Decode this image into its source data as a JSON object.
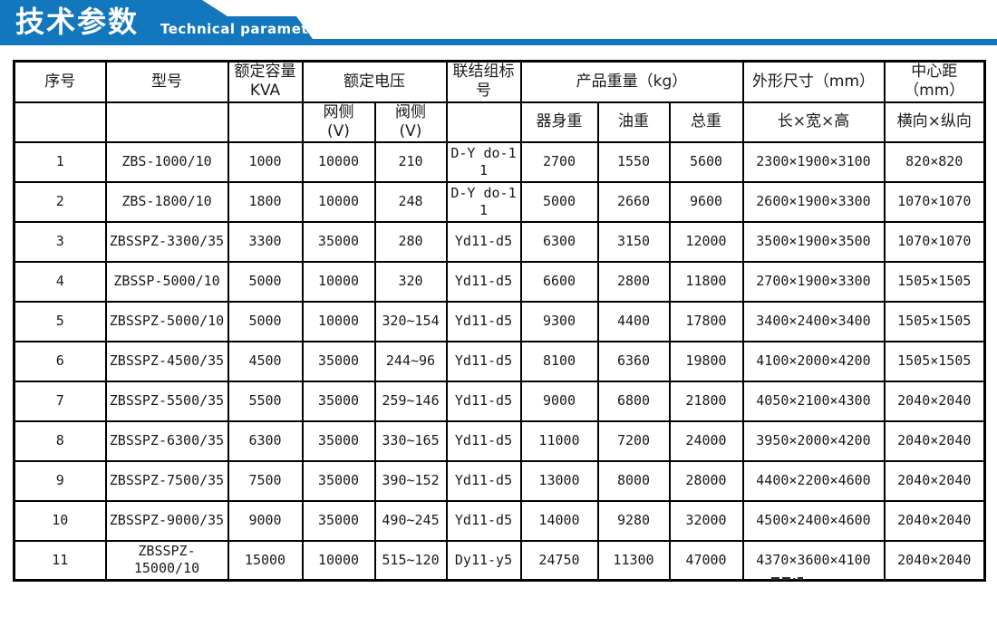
{
  "banner": {
    "title_zh": "技术参数",
    "title_en": "Technical parameter",
    "accent_color": "#1277bd"
  },
  "table": {
    "header": {
      "serial": "序号",
      "model": "型号",
      "capacity": "额定容量\nKVA",
      "voltage": "额定电压",
      "grid_side": "网侧\n(V)",
      "valve_side": "阀侧\n(V)",
      "vector_group": "联结组标号",
      "weight": "产品重量（kg）",
      "body_weight": "器身重",
      "oil_weight": "油重",
      "total_weight": "总重",
      "dimensions": "外形尺寸（mm）",
      "dimensions_sub": "长×宽×高",
      "center_distance": "中心距（mm）",
      "center_distance_sub": "横向×纵向"
    },
    "rows": [
      {
        "no": "1",
        "model": "ZBS-1000/10",
        "capacity": "1000",
        "grid_v": "10000",
        "valve_v": "210",
        "vector": "D-Y do-11",
        "body_w": "2700",
        "oil_w": "1550",
        "total_w": "5600",
        "dims": "2300×1900×3100",
        "center": "820×820"
      },
      {
        "no": "2",
        "model": "ZBS-1800/10",
        "capacity": "1800",
        "grid_v": "10000",
        "valve_v": "248",
        "vector": "D-Y do-11",
        "body_w": "5000",
        "oil_w": "2660",
        "total_w": "9600",
        "dims": "2600×1900×3300",
        "center": "1070×1070"
      },
      {
        "no": "3",
        "model": "ZBSSPZ-3300/35",
        "capacity": "3300",
        "grid_v": "35000",
        "valve_v": "280",
        "vector": "Yd11-d5",
        "body_w": "6300",
        "oil_w": "3150",
        "total_w": "12000",
        "dims": "3500×1900×3500",
        "center": "1070×1070"
      },
      {
        "no": "4",
        "model": "ZBSSP-5000/10",
        "capacity": "5000",
        "grid_v": "10000",
        "valve_v": "320",
        "vector": "Yd11-d5",
        "body_w": "6600",
        "oil_w": "2800",
        "total_w": "11800",
        "dims": "2700×1900×3300",
        "center": "1505×1505"
      },
      {
        "no": "5",
        "model": "ZBSSPZ-5000/10",
        "capacity": "5000",
        "grid_v": "10000",
        "valve_v": "320~154",
        "vector": "Yd11-d5",
        "body_w": "9300",
        "oil_w": "4400",
        "total_w": "17800",
        "dims": "3400×2400×3400",
        "center": "1505×1505"
      },
      {
        "no": "6",
        "model": "ZBSSPZ-4500/35",
        "capacity": "4500",
        "grid_v": "35000",
        "valve_v": "244~96",
        "vector": "Yd11-d5",
        "body_w": "8100",
        "oil_w": "6360",
        "total_w": "19800",
        "dims": "4100×2000×4200",
        "center": "1505×1505"
      },
      {
        "no": "7",
        "model": "ZBSSPZ-5500/35",
        "capacity": "5500",
        "grid_v": "35000",
        "valve_v": "259~146",
        "vector": "Yd11-d5",
        "body_w": "9000",
        "oil_w": "6800",
        "total_w": "21800",
        "dims": "4050×2100×4300",
        "center": "2040×2040"
      },
      {
        "no": "8",
        "model": "ZBSSPZ-6300/35",
        "capacity": "6300",
        "grid_v": "35000",
        "valve_v": "330~165",
        "vector": "Yd11-d5",
        "body_w": "11000",
        "oil_w": "7200",
        "total_w": "24000",
        "dims": "3950×2000×4200",
        "center": "2040×2040"
      },
      {
        "no": "9",
        "model": "ZBSSPZ-7500/35",
        "capacity": "7500",
        "grid_v": "35000",
        "valve_v": "390~152",
        "vector": "Yd11-d5",
        "body_w": "13000",
        "oil_w": "8000",
        "total_w": "28000",
        "dims": "4400×2200×4600",
        "center": "2040×2040"
      },
      {
        "no": "10",
        "model": "ZBSSPZ-9000/35",
        "capacity": "9000",
        "grid_v": "35000",
        "valve_v": "490~245",
        "vector": "Yd11-d5",
        "body_w": "14000",
        "oil_w": "9280",
        "total_w": "32000",
        "dims": "4500×2400×4600",
        "center": "2040×2040"
      },
      {
        "no": "11",
        "model": "ZBSSPZ-15000/10",
        "capacity": "15000",
        "grid_v": "10000",
        "valve_v": "515~120",
        "vector": "Dy11-y5",
        "body_w": "24750",
        "oil_w": "11300",
        "total_w": "47000",
        "dims": "4370×3600×4100",
        "center": "2040×2040"
      }
    ]
  }
}
